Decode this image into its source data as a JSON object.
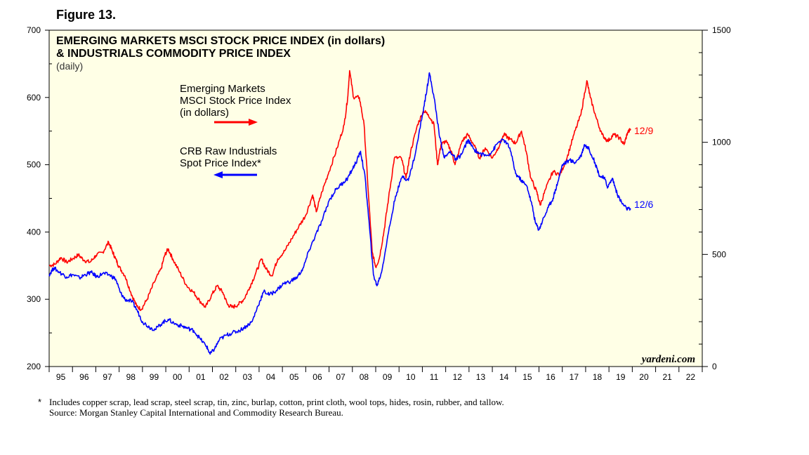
{
  "figure_label": "Figure 13.",
  "footnote": {
    "star": "*",
    "line1": "Includes copper scrap, lead scrap, steel scrap, tin, zinc, burlap, cotton, print cloth, wool tops, hides, rosin, rubber, and tallow.",
    "line2": "Source: Morgan Stanley Capital International and Commodity Research Bureau."
  },
  "chart_data": {
    "type": "line",
    "title_line1": "EMERGING MARKETS MSCI STOCK PRICE INDEX (in dollars)",
    "title_line2": "& INDUSTRIALS COMMODITY PRICE INDEX",
    "subtitle": "(daily)",
    "watermark": "yardeni.com",
    "background_color": "#ffffe6",
    "x_ticks": [
      "95",
      "96",
      "97",
      "98",
      "99",
      "00",
      "01",
      "02",
      "03",
      "04",
      "05",
      "06",
      "07",
      "08",
      "09",
      "10",
      "11",
      "12",
      "13",
      "14",
      "15",
      "16",
      "17",
      "18",
      "19",
      "20",
      "21",
      "22"
    ],
    "x_range": [
      1995,
      2023
    ],
    "y_left": {
      "range": [
        200,
        700
      ],
      "ticks": [
        "200",
        "300",
        "400",
        "500",
        "600",
        "700"
      ]
    },
    "y_right": {
      "range": [
        0,
        1500
      ],
      "ticks": [
        "0",
        "500",
        "1000",
        "1500"
      ]
    },
    "series": [
      {
        "name": "Emerging Markets MSCI Stock Price Index (in dollars)",
        "label_lines": [
          "Emerging Markets",
          "MSCI Stock Price Index",
          "(in dollars)"
        ],
        "axis": "left",
        "color": "#ff0000",
        "end_label": "12/9",
        "points": [
          [
            1995.0,
            350
          ],
          [
            1995.25,
            352
          ],
          [
            1995.5,
            362
          ],
          [
            1995.75,
            355
          ],
          [
            1996.0,
            360
          ],
          [
            1996.25,
            366
          ],
          [
            1996.5,
            358
          ],
          [
            1996.75,
            355
          ],
          [
            1997.0,
            365
          ],
          [
            1997.3,
            370
          ],
          [
            1997.55,
            385
          ],
          [
            1997.7,
            372
          ],
          [
            1997.85,
            360
          ],
          [
            1998.0,
            348
          ],
          [
            1998.25,
            335
          ],
          [
            1998.5,
            310
          ],
          [
            1998.75,
            290
          ],
          [
            1998.95,
            285
          ],
          [
            1999.2,
            300
          ],
          [
            1999.5,
            325
          ],
          [
            1999.8,
            345
          ],
          [
            1999.95,
            365
          ],
          [
            2000.1,
            375
          ],
          [
            2000.3,
            360
          ],
          [
            2000.6,
            340
          ],
          [
            2000.9,
            320
          ],
          [
            2001.2,
            310
          ],
          [
            2001.45,
            298
          ],
          [
            2001.7,
            288
          ],
          [
            2001.95,
            305
          ],
          [
            2002.2,
            320
          ],
          [
            2002.45,
            310
          ],
          [
            2002.65,
            292
          ],
          [
            2002.85,
            288
          ],
          [
            2003.1,
            292
          ],
          [
            2003.35,
            300
          ],
          [
            2003.6,
            318
          ],
          [
            2003.85,
            338
          ],
          [
            2004.1,
            360
          ],
          [
            2004.3,
            345
          ],
          [
            2004.55,
            335
          ],
          [
            2004.8,
            360
          ],
          [
            2005.1,
            372
          ],
          [
            2005.4,
            390
          ],
          [
            2005.7,
            408
          ],
          [
            2006.0,
            425
          ],
          [
            2006.3,
            455
          ],
          [
            2006.45,
            430
          ],
          [
            2006.7,
            460
          ],
          [
            2007.0,
            490
          ],
          [
            2007.35,
            525
          ],
          [
            2007.65,
            560
          ],
          [
            2007.8,
            600
          ],
          [
            2007.88,
            640
          ],
          [
            2008.05,
            600
          ],
          [
            2008.3,
            600
          ],
          [
            2008.5,
            560
          ],
          [
            2008.7,
            450
          ],
          [
            2008.85,
            370
          ],
          [
            2009.0,
            348
          ],
          [
            2009.15,
            360
          ],
          [
            2009.35,
            400
          ],
          [
            2009.55,
            450
          ],
          [
            2009.8,
            510
          ],
          [
            2010.1,
            510
          ],
          [
            2010.3,
            480
          ],
          [
            2010.5,
            520
          ],
          [
            2010.8,
            560
          ],
          [
            2011.05,
            580
          ],
          [
            2011.25,
            575
          ],
          [
            2011.5,
            560
          ],
          [
            2011.65,
            500
          ],
          [
            2011.8,
            530
          ],
          [
            2012.0,
            535
          ],
          [
            2012.25,
            520
          ],
          [
            2012.4,
            500
          ],
          [
            2012.7,
            535
          ],
          [
            2012.95,
            545
          ],
          [
            2013.2,
            530
          ],
          [
            2013.45,
            510
          ],
          [
            2013.7,
            525
          ],
          [
            2014.0,
            510
          ],
          [
            2014.25,
            525
          ],
          [
            2014.5,
            545
          ],
          [
            2014.75,
            538
          ],
          [
            2015.0,
            532
          ],
          [
            2015.25,
            550
          ],
          [
            2015.45,
            520
          ],
          [
            2015.65,
            480
          ],
          [
            2015.9,
            460
          ],
          [
            2016.05,
            440
          ],
          [
            2016.3,
            465
          ],
          [
            2016.6,
            490
          ],
          [
            2016.9,
            485
          ],
          [
            2017.2,
            510
          ],
          [
            2017.5,
            545
          ],
          [
            2017.8,
            575
          ],
          [
            2018.05,
            625
          ],
          [
            2018.2,
            600
          ],
          [
            2018.45,
            570
          ],
          [
            2018.7,
            545
          ],
          [
            2018.95,
            535
          ],
          [
            2019.2,
            545
          ],
          [
            2019.45,
            540
          ],
          [
            2019.65,
            530
          ],
          [
            2019.8,
            548
          ],
          [
            2019.94,
            553
          ]
        ]
      },
      {
        "name": "CRB Raw Industrials Spot Price Index*",
        "label_lines": [
          "CRB Raw Industrials",
          "Spot Price Index*"
        ],
        "axis": "right",
        "color": "#0000ff",
        "end_label": "12/6",
        "points": [
          [
            1995.0,
            410
          ],
          [
            1995.2,
            440
          ],
          [
            1995.45,
            420
          ],
          [
            1995.75,
            400
          ],
          [
            1996.0,
            410
          ],
          [
            1996.3,
            395
          ],
          [
            1996.55,
            410
          ],
          [
            1996.8,
            420
          ],
          [
            1997.05,
            400
          ],
          [
            1997.3,
            415
          ],
          [
            1997.6,
            408
          ],
          [
            1997.85,
            390
          ],
          [
            1998.05,
            330
          ],
          [
            1998.25,
            300
          ],
          [
            1998.55,
            290
          ],
          [
            1998.75,
            255
          ],
          [
            1999.0,
            200
          ],
          [
            1999.3,
            175
          ],
          [
            1999.55,
            165
          ],
          [
            1999.85,
            195
          ],
          [
            2000.1,
            210
          ],
          [
            2000.4,
            190
          ],
          [
            2000.7,
            180
          ],
          [
            2000.95,
            170
          ],
          [
            2001.2,
            160
          ],
          [
            2001.5,
            120
          ],
          [
            2001.75,
            90
          ],
          [
            2001.9,
            55
          ],
          [
            2002.1,
            80
          ],
          [
            2002.3,
            120
          ],
          [
            2002.6,
            140
          ],
          [
            2002.85,
            150
          ],
          [
            2003.15,
            160
          ],
          [
            2003.45,
            180
          ],
          [
            2003.7,
            200
          ],
          [
            2003.95,
            270
          ],
          [
            2004.2,
            335
          ],
          [
            2004.45,
            320
          ],
          [
            2004.75,
            340
          ],
          [
            2005.05,
            370
          ],
          [
            2005.35,
            380
          ],
          [
            2005.65,
            400
          ],
          [
            2005.9,
            440
          ],
          [
            2006.15,
            520
          ],
          [
            2006.4,
            580
          ],
          [
            2006.7,
            650
          ],
          [
            2007.0,
            740
          ],
          [
            2007.3,
            790
          ],
          [
            2007.6,
            820
          ],
          [
            2007.8,
            840
          ],
          [
            2008.0,
            880
          ],
          [
            2008.2,
            920
          ],
          [
            2008.35,
            960
          ],
          [
            2008.55,
            840
          ],
          [
            2008.75,
            600
          ],
          [
            2008.9,
            410
          ],
          [
            2009.05,
            360
          ],
          [
            2009.25,
            420
          ],
          [
            2009.55,
            600
          ],
          [
            2009.85,
            760
          ],
          [
            2010.15,
            850
          ],
          [
            2010.4,
            830
          ],
          [
            2010.7,
            950
          ],
          [
            2011.0,
            1120
          ],
          [
            2011.2,
            1240
          ],
          [
            2011.3,
            1310
          ],
          [
            2011.5,
            1200
          ],
          [
            2011.75,
            1020
          ],
          [
            2011.95,
            930
          ],
          [
            2012.2,
            960
          ],
          [
            2012.45,
            920
          ],
          [
            2012.7,
            950
          ],
          [
            2012.95,
            1010
          ],
          [
            2013.2,
            970
          ],
          [
            2013.45,
            950
          ],
          [
            2013.75,
            940
          ],
          [
            2014.0,
            960
          ],
          [
            2014.25,
            1000
          ],
          [
            2014.5,
            1010
          ],
          [
            2014.75,
            975
          ],
          [
            2015.0,
            860
          ],
          [
            2015.25,
            830
          ],
          [
            2015.5,
            800
          ],
          [
            2015.7,
            720
          ],
          [
            2015.85,
            640
          ],
          [
            2016.0,
            610
          ],
          [
            2016.15,
            650
          ],
          [
            2016.4,
            710
          ],
          [
            2016.6,
            750
          ],
          [
            2016.8,
            820
          ],
          [
            2017.0,
            900
          ],
          [
            2017.3,
            920
          ],
          [
            2017.55,
            910
          ],
          [
            2017.8,
            940
          ],
          [
            2017.95,
            990
          ],
          [
            2018.15,
            970
          ],
          [
            2018.4,
            910
          ],
          [
            2018.6,
            850
          ],
          [
            2018.8,
            840
          ],
          [
            2018.95,
            800
          ],
          [
            2019.15,
            840
          ],
          [
            2019.35,
            770
          ],
          [
            2019.55,
            730
          ],
          [
            2019.75,
            705
          ],
          [
            2019.93,
            700
          ]
        ]
      }
    ]
  }
}
